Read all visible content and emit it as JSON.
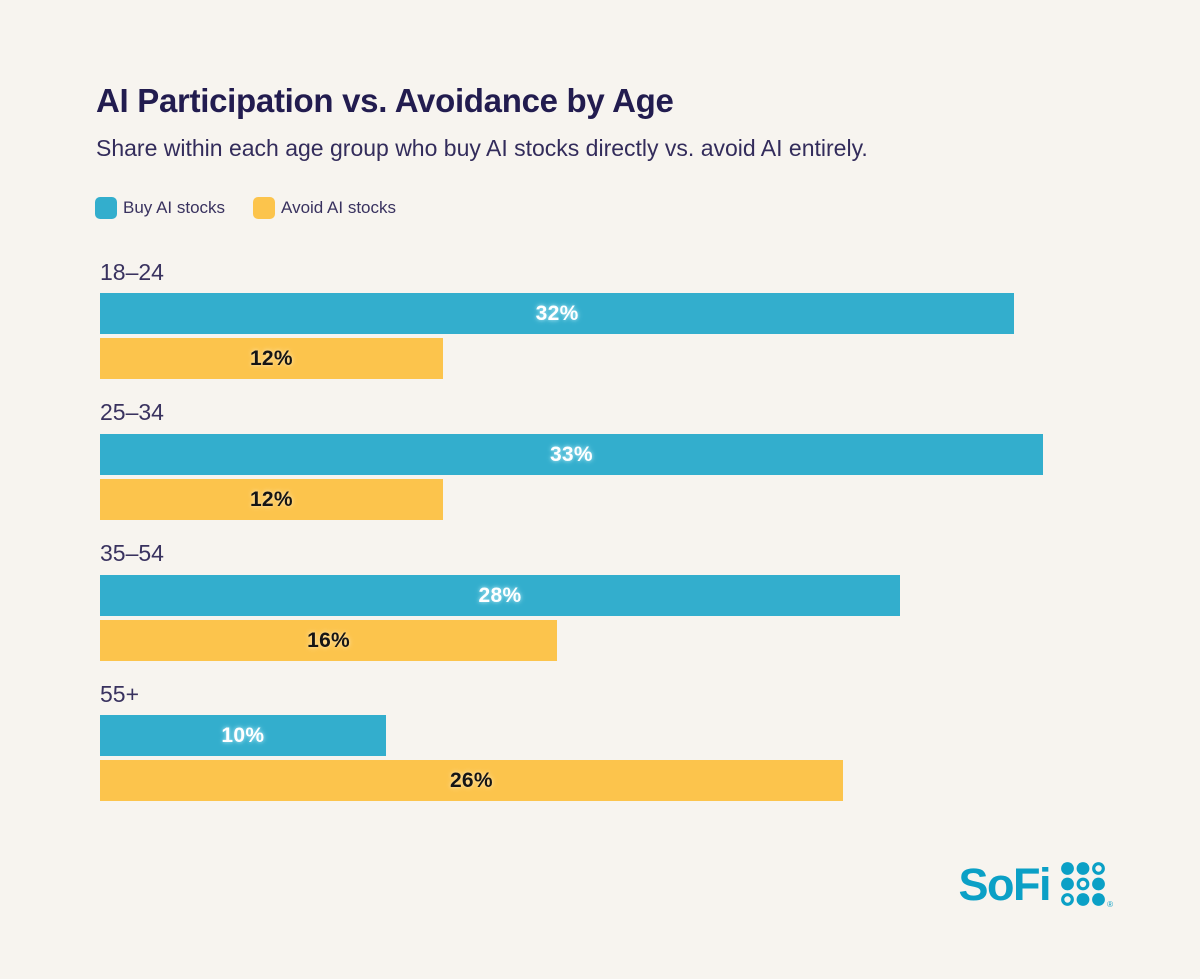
{
  "page": {
    "background": "#F7F4EF"
  },
  "header": {
    "title": "AI Participation vs. Avoidance by Age",
    "subtitle": "Share within each age group who buy AI stocks directly vs. avoid AI entirely."
  },
  "legend": {
    "items": [
      {
        "label": "Buy AI stocks",
        "color": "#33AECD"
      },
      {
        "label": "Avoid AI stocks",
        "color": "#FCC44C"
      }
    ]
  },
  "chart_data": {
    "type": "bar",
    "orientation": "horizontal",
    "title": "AI Participation vs. Avoidance by Age",
    "subtitle": "Share within each age group who buy AI stocks directly vs. avoid AI entirely.",
    "categories": [
      "18–24",
      "25–34",
      "35–54",
      "55+"
    ],
    "series": [
      {
        "name": "Buy AI stocks",
        "color": "#33AECD",
        "value_label_color": "#FFFFFF",
        "value_label_halo": "#8FD8EA",
        "values": [
          32,
          33,
          28,
          10
        ]
      },
      {
        "name": "Avoid AI stocks",
        "color": "#FCC44C",
        "value_label_color": "#151515",
        "value_label_halo": "#FFDE9B",
        "values": [
          12,
          12,
          16,
          26
        ]
      }
    ],
    "value_suffix": "%",
    "axis_max": 35,
    "grid": false,
    "legend_position": "top-left"
  },
  "footer": {
    "brand_wordmark": "SoFi",
    "brand_color": "#0BA0C6",
    "registered_mark": "®",
    "dot_grid_pattern": [
      [
        "filled",
        "filled",
        "ring"
      ],
      [
        "filled",
        "ring",
        "filled"
      ],
      [
        "ring",
        "filled",
        "filled"
      ]
    ]
  }
}
